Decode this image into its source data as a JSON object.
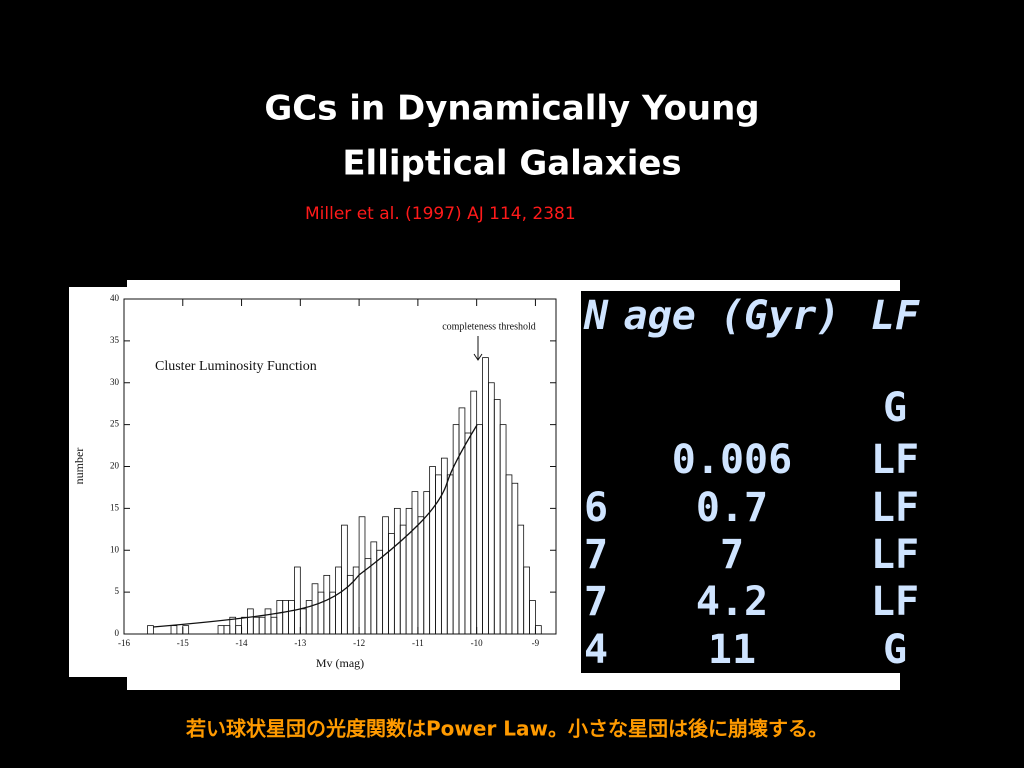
{
  "title_lines": [
    "GCs in Dynamically Young",
    "Elliptical Galaxies"
  ],
  "citation": "Miller et al. (1997) AJ 114, 2381",
  "chart_data": {
    "type": "histogram",
    "title": "Cluster Luminosity Function",
    "annotation": "completeness threshold",
    "x_label": "Mv (mag)",
    "y_label": "number",
    "bins": [
      -15.6,
      -15.5,
      -15.4,
      -15.3,
      -15.2,
      -15.1,
      -15.0,
      -14.9,
      -14.8,
      -14.7,
      -14.6,
      -14.5,
      -14.4,
      -14.3,
      -14.2,
      -14.1,
      -14.0,
      -13.9,
      -13.8,
      -13.7,
      -13.6,
      -13.5,
      -13.4,
      -13.3,
      -13.2,
      -13.1,
      -13.0,
      -12.9,
      -12.8,
      -12.7,
      -12.6,
      -12.5,
      -12.4,
      -12.3,
      -12.2,
      -12.1,
      -12.0,
      -11.9,
      -11.8,
      -11.7,
      -11.6,
      -11.5,
      -11.4,
      -11.3,
      -11.2,
      -11.1,
      -11.0,
      -10.9,
      -10.8,
      -10.7,
      -10.6,
      -10.5,
      -10.4,
      -10.3,
      -10.2,
      -10.1,
      -10.0,
      -9.9,
      -9.8,
      -9.7,
      -9.6,
      -9.5,
      -9.4,
      -9.3,
      -9.2,
      -9.1,
      -9.0,
      -8.9
    ],
    "values": [
      1,
      0,
      0,
      0,
      1,
      0,
      1,
      0,
      0,
      0,
      0,
      0,
      1,
      1,
      2,
      1,
      2,
      3,
      2,
      2,
      3,
      2,
      4,
      4,
      4,
      8,
      3,
      4,
      6,
      5,
      7,
      5,
      8,
      13,
      7,
      8,
      14,
      9,
      11,
      10,
      14,
      12,
      15,
      13,
      15,
      17,
      14,
      17,
      20,
      19,
      21,
      19,
      25,
      27,
      24,
      29,
      25,
      33,
      30,
      28,
      25,
      19,
      18,
      13,
      8,
      4,
      1
    ],
    "xlim": [
      -16,
      -8.65
    ],
    "ylim": [
      0,
      40
    ],
    "xticks": [
      -16,
      -15,
      -14,
      -13,
      -12,
      -11,
      -10,
      -9
    ],
    "yticks": [
      0,
      5,
      10,
      15,
      20,
      25,
      30,
      35,
      40
    ]
  },
  "table": {
    "header": [
      "N",
      "age (Gyr)",
      "LF"
    ],
    "rows": [
      {
        "lf": "G"
      },
      {
        "age": "0.006",
        "lf": "LF"
      },
      {
        "n": "6",
        "age": "0.7",
        "lf": "LF"
      },
      {
        "n": "7",
        "age": "7",
        "lf": "LF"
      },
      {
        "n": "7",
        "age": "4.2",
        "lf": "LF"
      },
      {
        "n": "4",
        "age": "11",
        "lf": "G"
      }
    ]
  },
  "footer": "若い球状星団の光度関数はPower Law。小さな星団は後に崩壊する。"
}
